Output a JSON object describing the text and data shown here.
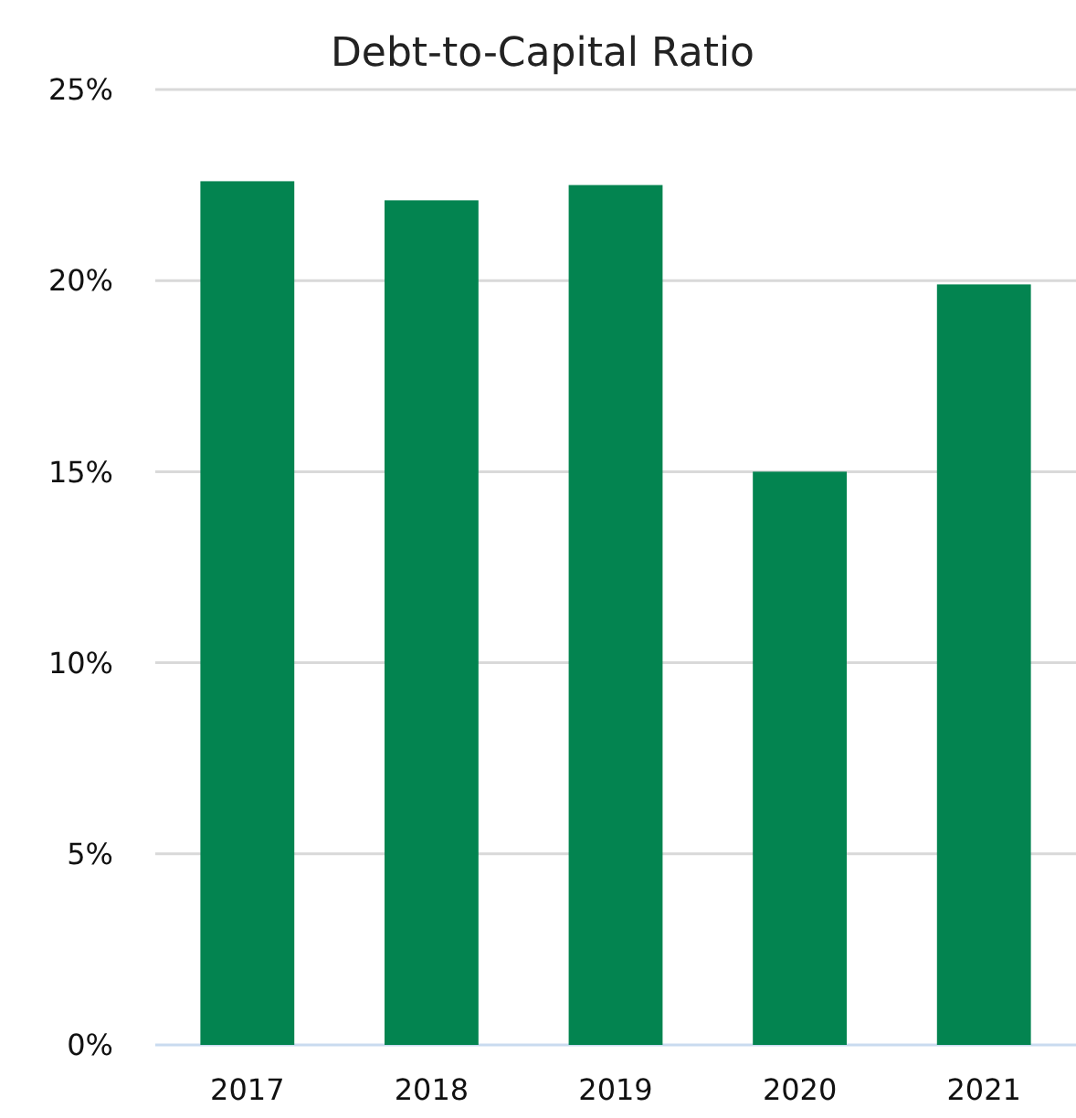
{
  "chart_data": {
    "type": "bar",
    "title": "Debt-to-Capital Ratio",
    "categories": [
      "2017",
      "2018",
      "2019",
      "2020",
      "2021"
    ],
    "values": [
      22.6,
      22.1,
      22.5,
      15.0,
      19.9
    ],
    "color": "#038450",
    "ylim": [
      0,
      25
    ],
    "yticks": [
      {
        "value": 0,
        "label": "0%"
      },
      {
        "value": 5,
        "label": "5%"
      },
      {
        "value": 10,
        "label": "10%"
      },
      {
        "value": 15,
        "label": "15%"
      },
      {
        "value": 20,
        "label": "20%"
      },
      {
        "value": 25,
        "label": "25%"
      }
    ],
    "grid": "y"
  }
}
